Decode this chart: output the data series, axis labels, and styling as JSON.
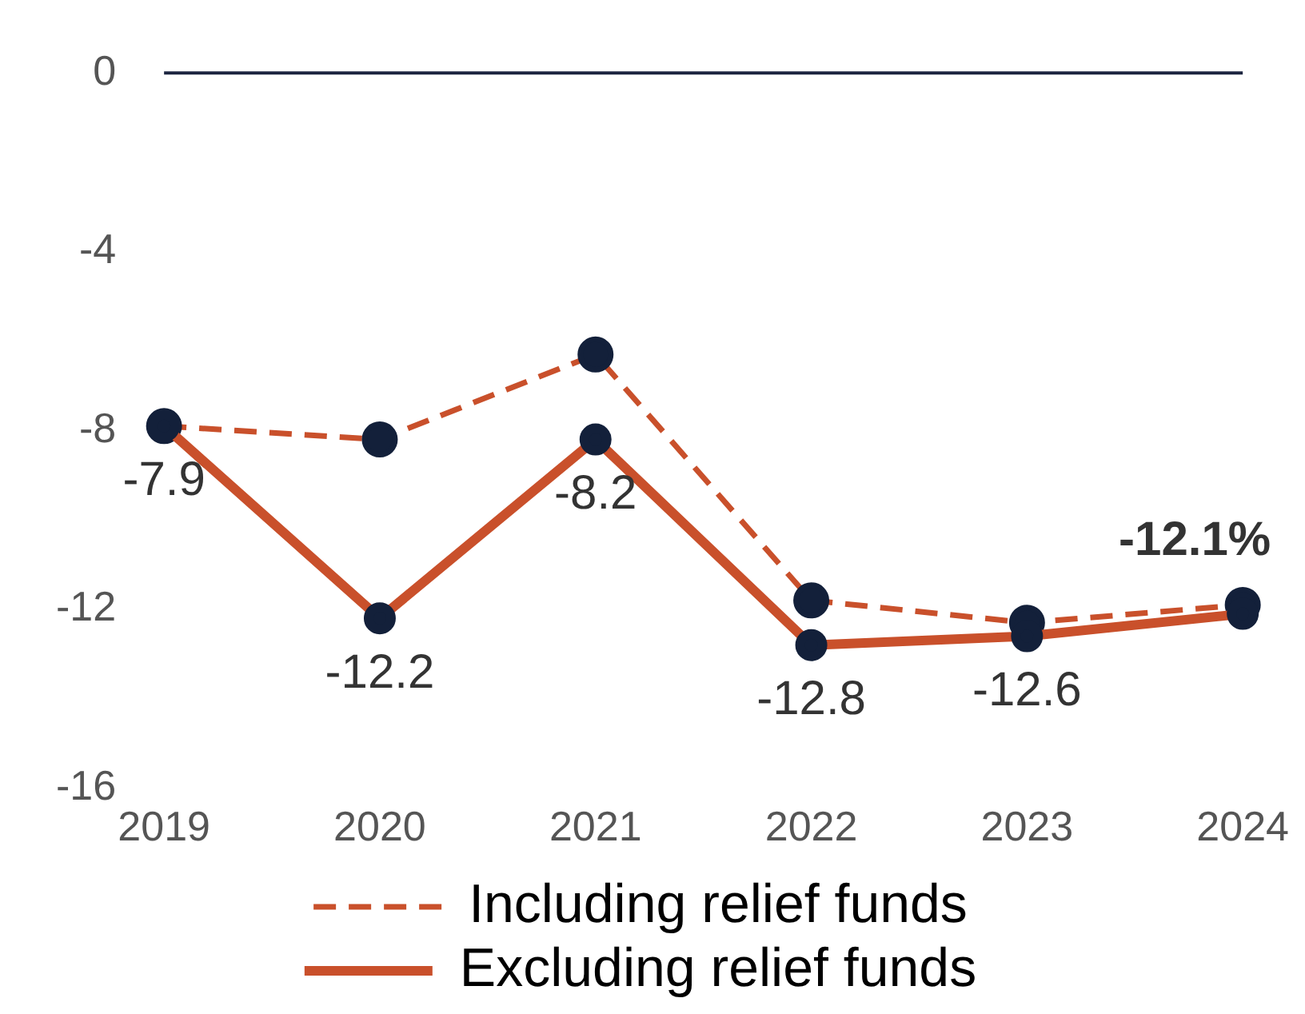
{
  "chart_data": {
    "type": "line",
    "categories": [
      "2019",
      "2020",
      "2021",
      "2022",
      "2023",
      "2024"
    ],
    "series": [
      {
        "name": "Including relief funds",
        "color": "#c9502b",
        "line_style": "dashed",
        "values": [
          -7.9,
          -8.2,
          -6.3,
          -11.8,
          -12.3,
          -11.9
        ]
      },
      {
        "name": "Excluding relief funds",
        "color": "#c9502b",
        "line_style": "solid",
        "values": [
          -7.9,
          -12.2,
          -8.2,
          -12.8,
          -12.6,
          -12.1
        ],
        "value_labels": [
          "-7.9",
          "-12.2",
          "-8.2",
          "-12.8",
          "-12.6",
          "-12.1%"
        ]
      }
    ],
    "ylim": [
      -16,
      0
    ],
    "yticks": [
      -16,
      -12,
      -8,
      -4,
      0
    ],
    "grid": false,
    "marker": "circle",
    "legend": "bottom",
    "ref_lines": [
      {
        "axis": "y",
        "value": 0,
        "color": "#1c2540"
      }
    ]
  }
}
